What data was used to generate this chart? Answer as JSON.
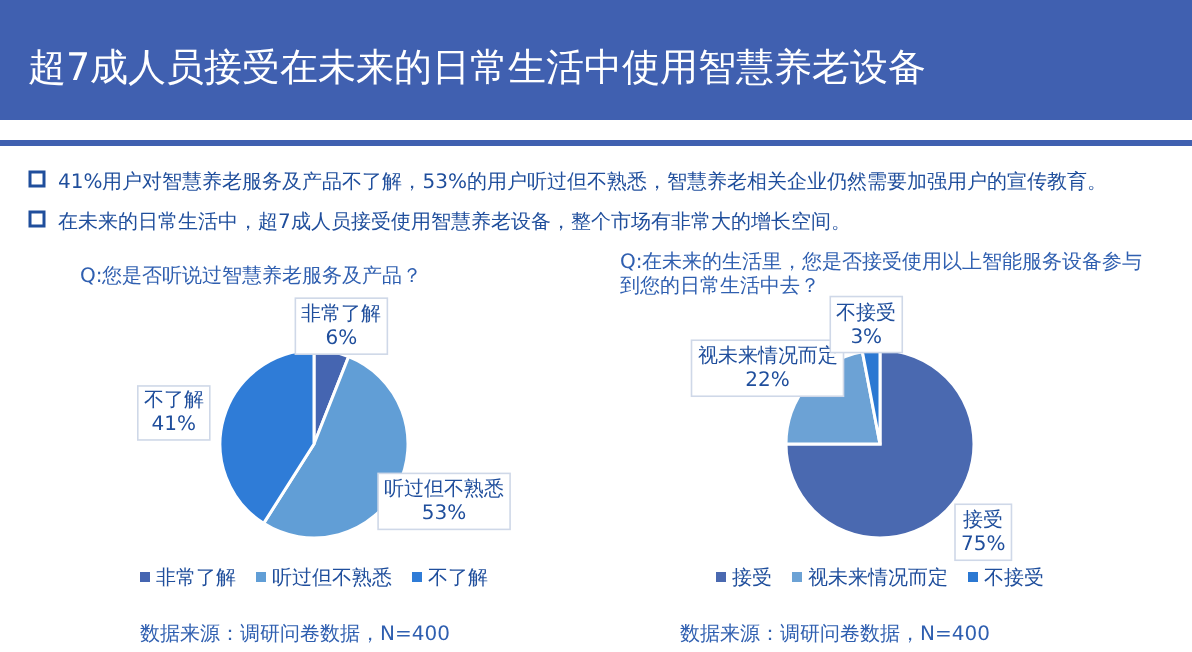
{
  "chart_data": [
    {
      "type": "other",
      "title": "超7成人员接受在未来的日常生活中使用智慧养老设备",
      "annotations": [
        "41%用户对智慧养老服务及产品不了解，53%的用户听过但不熟悉，智慧养老相关企业仍然需要加强用户的宣传教育。",
        "在未来的日常生活中，超7成人员接受使用智慧养老设备，整个市场有非常大的增长空间。"
      ]
    },
    {
      "type": "pie",
      "title": "Q:您是否听说过智慧养老服务及产品？",
      "categories": [
        "非常了解",
        "听过但不熟悉",
        "不了解"
      ],
      "values": [
        6,
        53,
        41
      ],
      "value_labels": [
        "6%",
        "53%",
        "41%"
      ],
      "colors": [
        "#4565b1",
        "#619ed6",
        "#2f7cd7"
      ],
      "legend": "bottom",
      "annotations": [
        "数据来源：调研问卷数据，N=400"
      ]
    },
    {
      "type": "pie",
      "title": "Q:在未来的生活里，您是否接受使用以上智能服务设备参与到您的日常生活中去？",
      "categories": [
        "接受",
        "视未来情况而定",
        "不接受"
      ],
      "values": [
        75,
        22,
        3
      ],
      "value_labels": [
        "75%",
        "22%",
        "3%"
      ],
      "colors": [
        "#4a69b0",
        "#6ca2d5",
        "#2b78d2"
      ],
      "legend": "bottom",
      "annotations": [
        "数据来源：调研问卷数据，N=400"
      ]
    }
  ]
}
